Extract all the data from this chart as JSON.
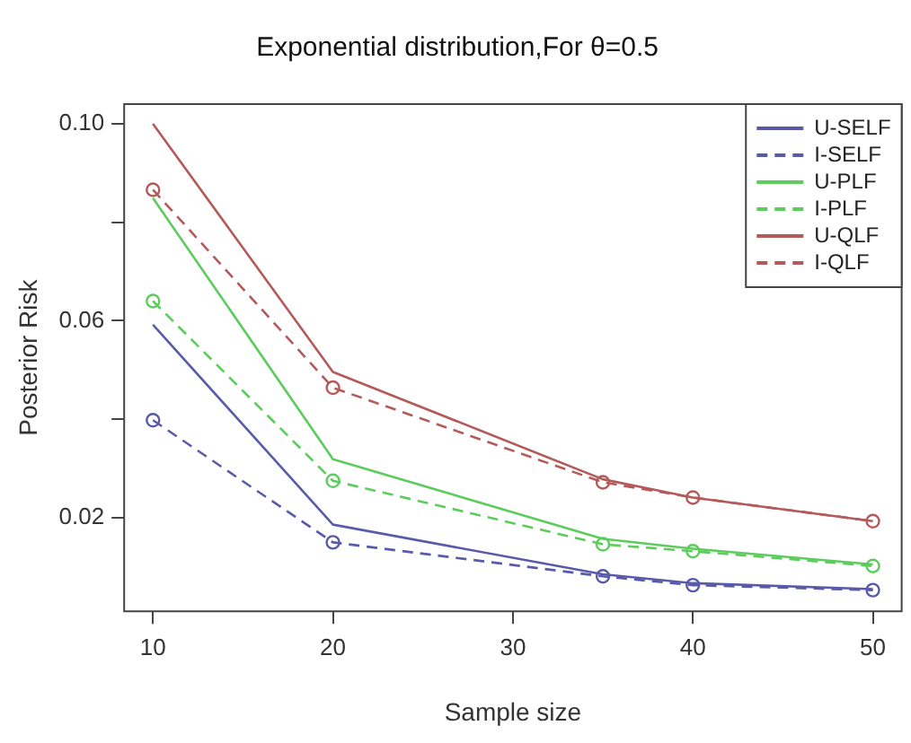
{
  "chart_data": {
    "type": "line",
    "title": "Exponential distribution,For θ=0.5",
    "xlabel": "Sample size",
    "ylabel": "Posterior Risk",
    "x": [
      10,
      20,
      35,
      40,
      50
    ],
    "xlim": [
      8.4,
      51.6
    ],
    "xticks": [
      10,
      20,
      30,
      40,
      50
    ],
    "ylim": [
      0.001,
      0.104
    ],
    "yticks": [
      {
        "value": 0.02,
        "label": "0.02"
      },
      {
        "value": 0.04,
        "label": null
      },
      {
        "value": 0.06,
        "label": "0.06"
      },
      {
        "value": 0.08,
        "label": null
      },
      {
        "value": 0.1,
        "label": "0.10"
      }
    ],
    "legend": "top right",
    "series": [
      {
        "name": "U-SELF",
        "color": "#5a5aaa",
        "line_style": "solid",
        "marker": "none",
        "values": [
          0.0592,
          0.0186,
          0.0085,
          0.0067,
          0.0055
        ]
      },
      {
        "name": "I-SELF",
        "color": "#5a5aaa",
        "line_style": "dashed",
        "marker": "circle",
        "values": [
          0.0398,
          0.015,
          0.0081,
          0.0063,
          0.0053
        ]
      },
      {
        "name": "U-PLF",
        "color": "#5ccc5c",
        "line_style": "solid",
        "marker": "none",
        "values": [
          0.0849,
          0.0319,
          0.0157,
          0.0137,
          0.0105
        ]
      },
      {
        "name": "I-PLF",
        "color": "#5ccc5c",
        "line_style": "dashed",
        "marker": "circle",
        "values": [
          0.064,
          0.0275,
          0.0146,
          0.0132,
          0.0102
        ]
      },
      {
        "name": "U-QLF",
        "color": "#b55a5a",
        "line_style": "solid",
        "marker": "none",
        "values": [
          0.1,
          0.0496,
          0.0278,
          0.0241,
          0.0193
        ]
      },
      {
        "name": "I-QLF",
        "color": "#b55a5a",
        "line_style": "dashed",
        "marker": "circle",
        "values": [
          0.0866,
          0.0464,
          0.0272,
          0.0241,
          0.0193
        ]
      }
    ]
  }
}
